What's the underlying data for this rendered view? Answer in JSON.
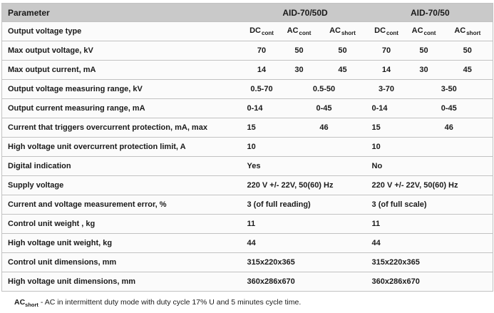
{
  "colors": {
    "header_bg": "#c9c9c9",
    "row_bg": "#fbfbfb",
    "border": "#c2c2c2",
    "text": "#1a1a1a"
  },
  "table": {
    "param_header": "Parameter",
    "device_headers": [
      "AID-70/50D",
      "AID-70/50"
    ],
    "mode_labels": [
      {
        "base": "DC",
        "sub": "cont"
      },
      {
        "base": "AC",
        "sub": "cont"
      },
      {
        "base": "AC",
        "sub": "short"
      }
    ],
    "rows": [
      {
        "param": "Output voltage type",
        "modes": true
      },
      {
        "param": "Max output voltage, kV",
        "cells": [
          [
            {
              "t": "70"
            },
            {
              "t": "50"
            },
            {
              "t": "50"
            }
          ],
          [
            {
              "t": "70"
            },
            {
              "t": "50"
            },
            {
              "t": "50"
            }
          ]
        ]
      },
      {
        "param": "Max output current, mA",
        "cells": [
          [
            {
              "t": "14"
            },
            {
              "t": "30"
            },
            {
              "t": "45"
            }
          ],
          [
            {
              "t": "14"
            },
            {
              "t": "30"
            },
            {
              "t": "45"
            }
          ]
        ]
      },
      {
        "param": "Output voltage measuring range, kV",
        "cells": [
          [
            {
              "t": "0.5-70"
            },
            {
              "t": "0.5-50",
              "span": 2
            }
          ],
          [
            {
              "t": "3-70"
            },
            {
              "t": "3-50",
              "span": 2
            }
          ]
        ]
      },
      {
        "param": "Output current measuring range, mA",
        "cells": [
          [
            {
              "t": "0-14",
              "align": "left"
            },
            {
              "t": "0-45",
              "span": 2
            }
          ],
          [
            {
              "t": "0-14",
              "align": "left"
            },
            {
              "t": "0-45",
              "span": 2
            }
          ]
        ]
      },
      {
        "param": "Current that triggers overcurrent protection, mA, max",
        "cells": [
          [
            {
              "t": "15",
              "align": "left"
            },
            {
              "t": "46",
              "span": 2
            }
          ],
          [
            {
              "t": "15",
              "align": "left"
            },
            {
              "t": "46",
              "span": 2
            }
          ]
        ]
      },
      {
        "param": "High voltage unit overcurrent protection limit, A",
        "cells": [
          [
            {
              "t": "10",
              "span": 3,
              "align": "left"
            }
          ],
          [
            {
              "t": "10",
              "span": 3,
              "align": "left"
            }
          ]
        ]
      },
      {
        "param": "Digital indication",
        "cells": [
          [
            {
              "t": "Yes",
              "span": 3,
              "align": "left"
            }
          ],
          [
            {
              "t": "No",
              "span": 3,
              "align": "left"
            }
          ]
        ]
      },
      {
        "param": "Supply voltage",
        "cells": [
          [
            {
              "t": "220 V +/- 22V, 50(60) Hz",
              "span": 3,
              "align": "left"
            }
          ],
          [
            {
              "t": "220 V +/- 22V, 50(60) Hz",
              "span": 3,
              "align": "left"
            }
          ]
        ]
      },
      {
        "param": "Current and voltage measurement error, %",
        "cells": [
          [
            {
              "t": "3 (of full reading)",
              "span": 3,
              "align": "left"
            }
          ],
          [
            {
              "t": "3 (of full scale)",
              "span": 3,
              "align": "left"
            }
          ]
        ]
      },
      {
        "param": "Control unit weight , kg",
        "cells": [
          [
            {
              "t": "11",
              "span": 3,
              "align": "left"
            }
          ],
          [
            {
              "t": "11",
              "span": 3,
              "align": "left"
            }
          ]
        ]
      },
      {
        "param": "High voltage unit weight, kg",
        "cells": [
          [
            {
              "t": "44",
              "span": 3,
              "align": "left"
            }
          ],
          [
            {
              "t": "44",
              "span": 3,
              "align": "left"
            }
          ]
        ]
      },
      {
        "param": "Control unit dimensions, mm",
        "cells": [
          [
            {
              "t": "315x220x365",
              "span": 3,
              "align": "left"
            }
          ],
          [
            {
              "t": "315x220x365",
              "span": 3,
              "align": "left"
            }
          ]
        ]
      },
      {
        "param": "High voltage unit dimensions, mm",
        "cells": [
          [
            {
              "t": "360x286x670",
              "span": 3,
              "align": "left"
            }
          ],
          [
            {
              "t": "360x286x670",
              "span": 3,
              "align": "left"
            }
          ]
        ]
      }
    ]
  },
  "footnote": {
    "term": "AC",
    "term_sub": "short",
    "rest": "- AC in intermittent duty mode with duty cycle 17% U and 5 minutes cycle time."
  }
}
